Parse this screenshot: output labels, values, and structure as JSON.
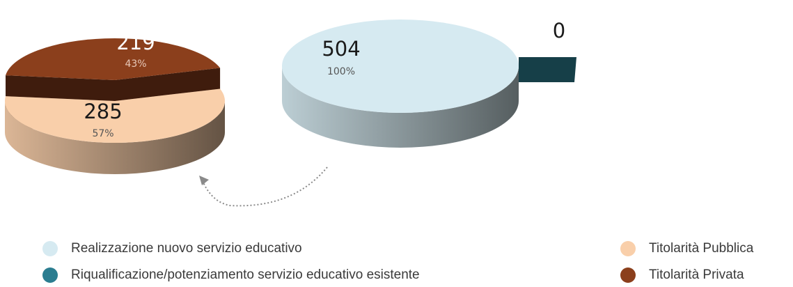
{
  "chart_data": [
    {
      "type": "pie",
      "categories": [
        "Realizzazione nuovo servizio educativo",
        "Riqualificazione/potenziamento servizio educativo esistente"
      ],
      "values": [
        504,
        0
      ],
      "percent_labels": [
        "100%",
        null
      ],
      "colors": [
        "#d6eaf1",
        "#2b7d90"
      ]
    },
    {
      "type": "pie",
      "categories": [
        "Titolarità Pubblica",
        "Titolarità Privata"
      ],
      "values": [
        285,
        219
      ],
      "percent_labels": [
        "57%",
        "43%"
      ],
      "colors": [
        "#f9cfaa",
        "#8b3f1c"
      ]
    }
  ]
}
